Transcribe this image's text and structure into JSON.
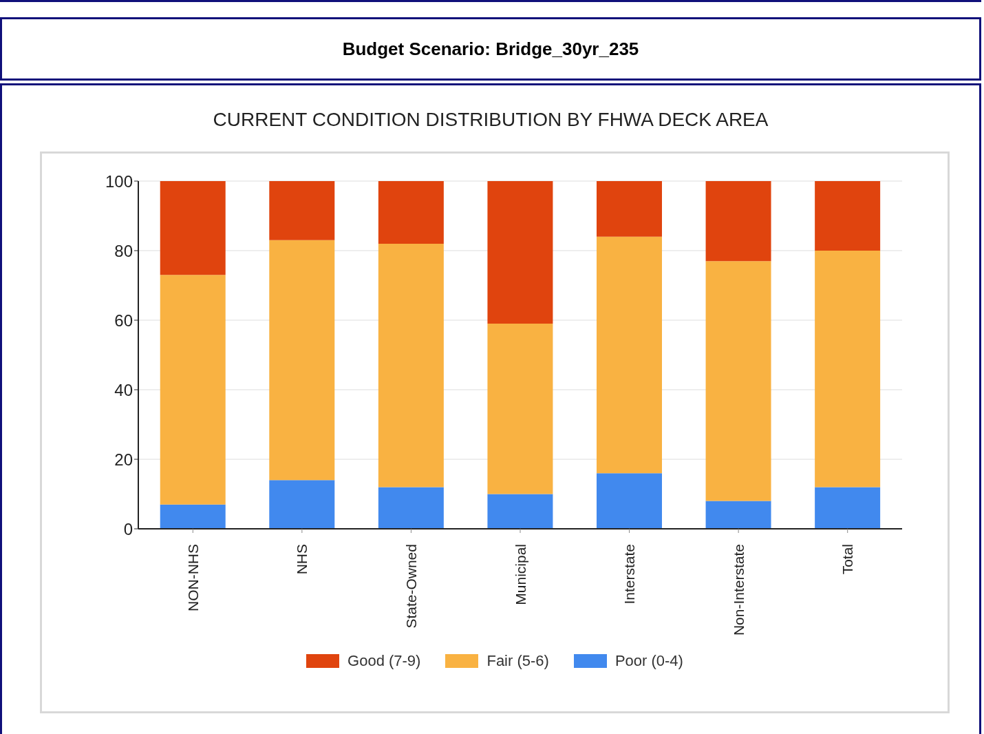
{
  "chart_data": {
    "type": "bar",
    "title": "Budget Scenario: Bridge_30yr_235",
    "subtitle": "CURRENT CONDITION DISTRIBUTION BY FHWA DECK AREA",
    "categories": [
      "NON-NHS",
      "NHS",
      "State-Owned",
      "Municipal",
      "Interstate",
      "Non-Interstate",
      "Total"
    ],
    "stacked": true,
    "series": [
      {
        "name": "Poor (0-4)",
        "color": "#4189ee",
        "values": [
          7,
          14,
          12,
          10,
          16,
          8,
          12
        ]
      },
      {
        "name": "Fair (5-6)",
        "color": "#f9b242",
        "values": [
          66,
          69,
          70,
          49,
          68,
          69,
          68
        ]
      },
      {
        "name": "Good (7-9)",
        "color": "#e0440e",
        "values": [
          27,
          17,
          18,
          41,
          16,
          23,
          20
        ]
      }
    ],
    "ylim": [
      0,
      100
    ],
    "yticks": [
      0,
      20,
      40,
      60,
      80,
      100
    ],
    "grid": "y",
    "legend": "bottom"
  }
}
